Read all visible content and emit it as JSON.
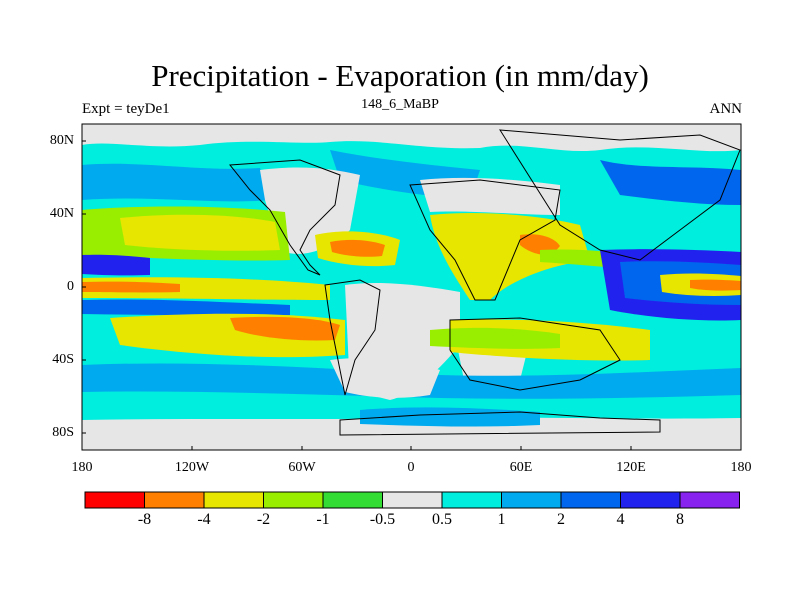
{
  "title": "Precipitation - Evaporation (in mm/day)",
  "subtitle_left": "Expt = teyDe1",
  "subtitle_center": "148_6_MaBP",
  "subtitle_right": "ANN",
  "y_ticks": [
    "80N",
    "40N",
    "0",
    "40S",
    "80S"
  ],
  "x_ticks": [
    "180",
    "120W",
    "60W",
    "0",
    "60E",
    "120E",
    "180"
  ],
  "colorbar": {
    "colors": [
      "#ff0000",
      "#ff8000",
      "#e6e600",
      "#99ee00",
      "#33dd33",
      "#e6e6e6",
      "#00eedd",
      "#00aaee",
      "#0066ee",
      "#2222ee",
      "#8822ee"
    ],
    "labels": [
      "-8",
      "-4",
      "-2",
      "-1",
      "-0.5",
      "0.5",
      "1",
      "2",
      "4",
      "8"
    ]
  },
  "field_colors": {
    "gray": "#e6e6e6",
    "cyan": "#00eedd",
    "lblue": "#00aaee",
    "blue": "#0066ee",
    "dblue": "#2222ee",
    "green": "#33dd33",
    "lgreen": "#99ee00",
    "yellow": "#e6e600",
    "orange": "#ff8000"
  }
}
